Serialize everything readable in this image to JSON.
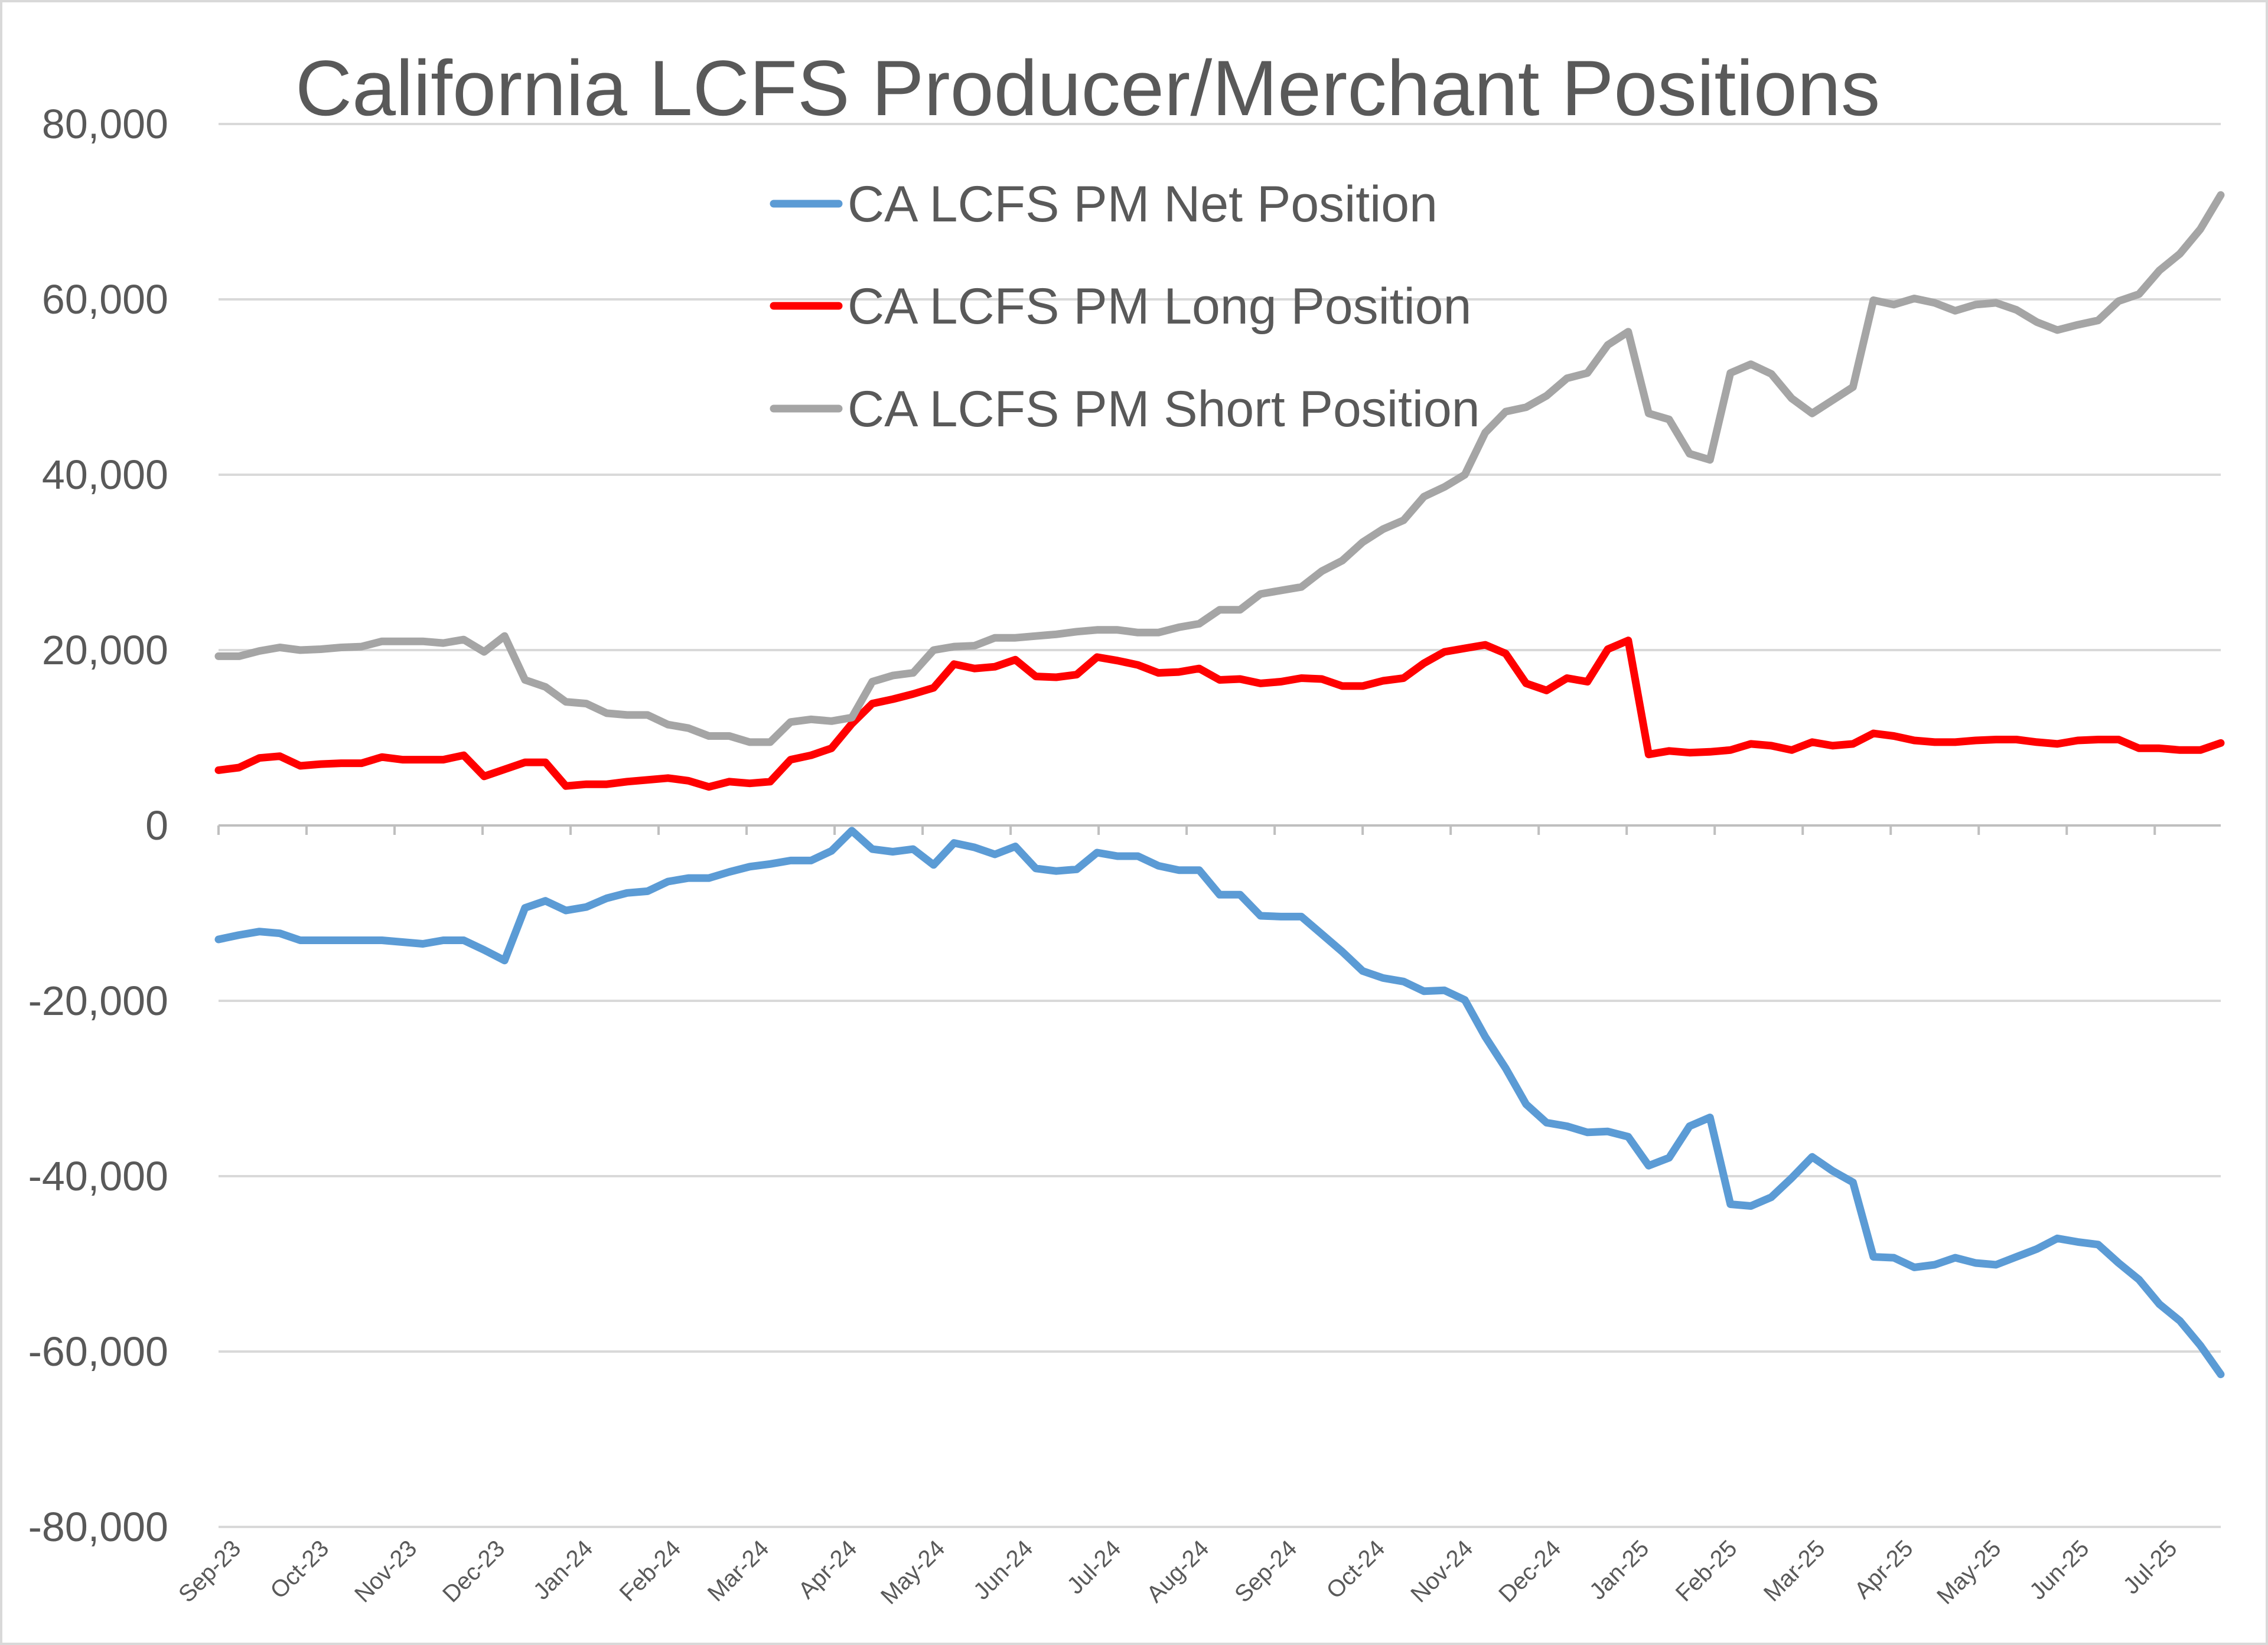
{
  "chart_data": {
    "type": "line",
    "title": "California LCFS Producer/Merchant Positions",
    "xlabel": "",
    "ylabel": "",
    "ylim": [
      -80000,
      80000
    ],
    "yticks": [
      "80,000",
      "60,000",
      "40,000",
      "20,000",
      "0",
      "-20,000",
      "-40,000",
      "-60,000",
      "-80,000"
    ],
    "ytick_values": [
      80000,
      60000,
      40000,
      20000,
      0,
      -20000,
      -40000,
      -60000,
      -80000
    ],
    "xticks": [
      "Sep-23",
      "Oct-23",
      "Nov-23",
      "Dec-23",
      "Jan-24",
      "Feb-24",
      "Mar-24",
      "Apr-24",
      "May-24",
      "Jun-24",
      "Jul-24",
      "Aug-24",
      "Sep-24",
      "Oct-24",
      "Nov-24",
      "Dec-24",
      "Jan-25",
      "Feb-25",
      "Mar-25",
      "Apr-25",
      "May-25",
      "Jun-25",
      "Jul-25"
    ],
    "legend_position": "top-center",
    "grid": "horizontal",
    "colors": {
      "net": "#5b9bd5",
      "long": "#ff0000",
      "short": "#a5a5a5"
    },
    "series": [
      {
        "name": "CA LCFS PM Net Position",
        "color": "#5b9bd5",
        "values": [
          -13000,
          -12500,
          -12100,
          -12300,
          -13100,
          -13100,
          -13100,
          -13100,
          -13100,
          -13300,
          -13500,
          -13100,
          -13100,
          -14200,
          -15400,
          -9400,
          -8600,
          -9700,
          -9300,
          -8300,
          -7700,
          -7500,
          -6400,
          -6000,
          -6000,
          -5300,
          -4700,
          -4400,
          -4000,
          -4000,
          -2900,
          -600,
          -2700,
          -3000,
          -2700,
          -4500,
          -2000,
          -2500,
          -3300,
          -2400,
          -4900,
          -5200,
          -5000,
          -3100,
          -3500,
          -3500,
          -4600,
          -5100,
          -5100,
          -7900,
          -7900,
          -10300,
          -10400,
          -10400,
          -12400,
          -14400,
          -16600,
          -17400,
          -17800,
          -18900,
          -18800,
          -19900,
          -24100,
          -27700,
          -31800,
          -33900,
          -34300,
          -35000,
          -34900,
          -35500,
          -38800,
          -37900,
          -34300,
          -33300,
          -43200,
          -43400,
          -42400,
          -40200,
          -37800,
          -39400,
          -40700,
          -49200,
          -49300,
          -50400,
          -50100,
          -49300,
          -49900,
          -50100,
          -49200,
          -48300,
          -47100,
          -47500,
          -47800,
          -49900,
          -51800,
          -54600,
          -56500,
          -59300,
          -62600
        ]
      },
      {
        "name": "CA LCFS PM Long Position",
        "color": "#ff0000",
        "values": [
          6300,
          6600,
          7700,
          7900,
          6800,
          7000,
          7100,
          7100,
          7800,
          7500,
          7500,
          7500,
          8000,
          5600,
          6400,
          7200,
          7200,
          4500,
          4700,
          4700,
          5000,
          5200,
          5400,
          5100,
          4400,
          5000,
          4800,
          5000,
          7500,
          8000,
          8800,
          11600,
          13900,
          14400,
          15000,
          15700,
          18400,
          17900,
          18100,
          18900,
          17000,
          16900,
          17200,
          19200,
          18800,
          18300,
          17400,
          17500,
          17900,
          16600,
          16700,
          16200,
          16400,
          16800,
          16700,
          15900,
          15900,
          16500,
          16800,
          18500,
          19800,
          20200,
          20600,
          19600,
          16200,
          15400,
          16800,
          16400,
          20100,
          21100,
          8100,
          8500,
          8300,
          8400,
          8600,
          9300,
          9100,
          8600,
          9500,
          9100,
          9300,
          10500,
          10200,
          9700,
          9500,
          9500,
          9700,
          9800,
          9800,
          9500,
          9300,
          9700,
          9800,
          9800,
          8800,
          8800,
          8600,
          8600,
          9400
        ]
      },
      {
        "name": "CA LCFS PM Short Position",
        "color": "#a5a5a5",
        "values": [
          19300,
          19300,
          19900,
          20300,
          20000,
          20100,
          20300,
          20400,
          21000,
          21000,
          21000,
          20800,
          21200,
          19800,
          21600,
          16600,
          15800,
          14100,
          13900,
          12800,
          12600,
          12600,
          11500,
          11100,
          10200,
          10200,
          9500,
          9500,
          11800,
          12100,
          11900,
          12300,
          16400,
          17100,
          17400,
          20000,
          20400,
          20500,
          21400,
          21400,
          21600,
          21800,
          22100,
          22300,
          22300,
          22000,
          22000,
          22600,
          23000,
          24600,
          24600,
          26400,
          26800,
          27200,
          29000,
          30200,
          32300,
          33800,
          34800,
          37500,
          38600,
          40000,
          44800,
          47200,
          47700,
          49000,
          51000,
          51600,
          54800,
          56300,
          47000,
          46300,
          42400,
          41700,
          51600,
          52600,
          51500,
          48700,
          47000,
          48500,
          50000,
          59900,
          59400,
          60100,
          59600,
          58700,
          59400,
          59600,
          58800,
          57400,
          56500,
          57100,
          57600,
          59800,
          60600,
          63300,
          65200,
          68000,
          71900
        ]
      }
    ]
  }
}
